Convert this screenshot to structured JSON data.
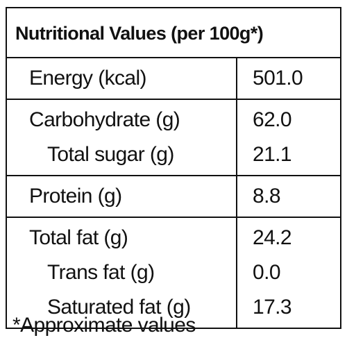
{
  "header": {
    "title": "Nutritional Values (per 100g*)"
  },
  "table": {
    "groups": [
      {
        "rows": [
          {
            "label": "Energy (kcal)",
            "value": "501.0",
            "indent": false
          }
        ]
      },
      {
        "rows": [
          {
            "label": "Carbohydrate (g)",
            "value": "62.0",
            "indent": false
          },
          {
            "label": "Total sugar (g)",
            "value": "21.1",
            "indent": true
          }
        ]
      },
      {
        "rows": [
          {
            "label": "Protein (g)",
            "value": "8.8",
            "indent": false
          }
        ]
      },
      {
        "rows": [
          {
            "label": "Total fat (g)",
            "value": "24.2",
            "indent": false
          },
          {
            "label": "Trans fat (g)",
            "value": "0.0",
            "indent": true
          },
          {
            "label": "Saturated fat (g)",
            "value": "17.3",
            "indent": true
          }
        ]
      }
    ]
  },
  "footnote": "*Approximate values"
}
